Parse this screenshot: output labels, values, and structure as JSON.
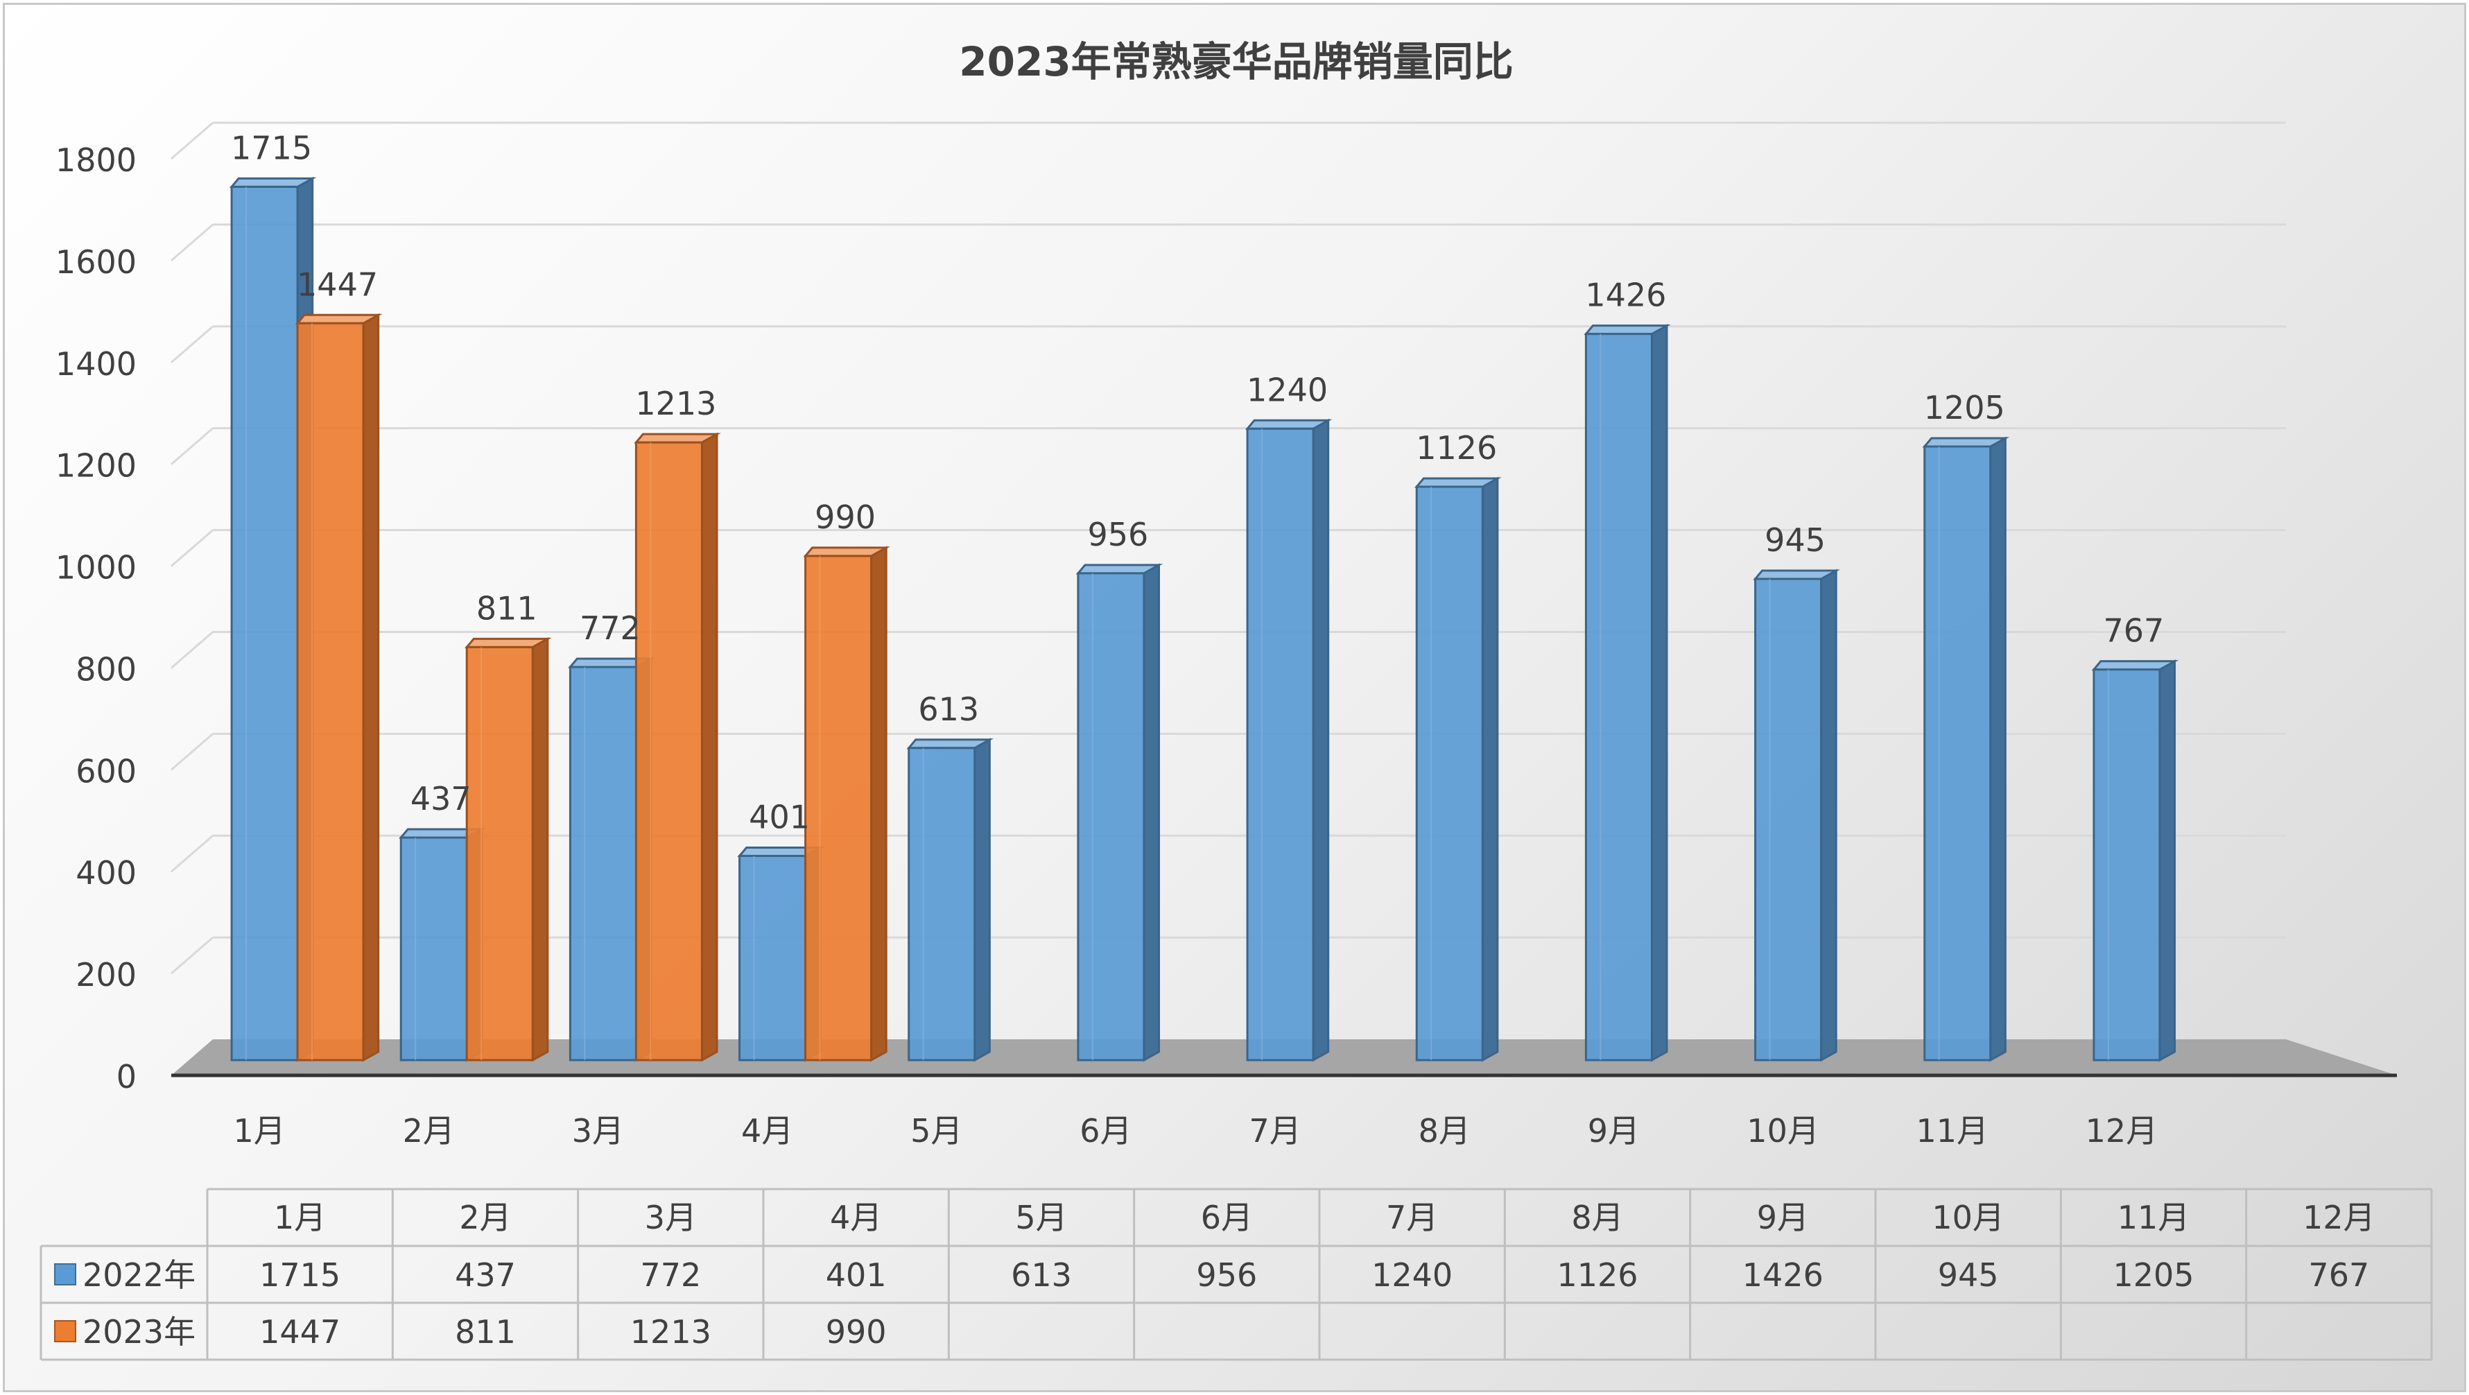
{
  "chart_data": {
    "type": "bar",
    "title": "2023年常熟豪华品牌销量同比",
    "categories": [
      "1月",
      "2月",
      "3月",
      "4月",
      "5月",
      "6月",
      "7月",
      "8月",
      "9月",
      "10月",
      "11月",
      "12月"
    ],
    "series": [
      {
        "name": "2022年",
        "color": "#5b9bd5",
        "values": [
          1715,
          437,
          772,
          401,
          613,
          956,
          1240,
          1126,
          1426,
          945,
          1205,
          767
        ]
      },
      {
        "name": "2023年",
        "color": "#ed7d31",
        "values": [
          1447,
          811,
          1213,
          990,
          null,
          null,
          null,
          null,
          null,
          null,
          null,
          null
        ]
      }
    ],
    "ylim": [
      0,
      1800
    ],
    "yticks": [
      0,
      200,
      400,
      600,
      800,
      1000,
      1200,
      1400,
      1600,
      1800
    ],
    "grid": true,
    "three_d": true,
    "data_table": true,
    "legend": "data-table"
  }
}
